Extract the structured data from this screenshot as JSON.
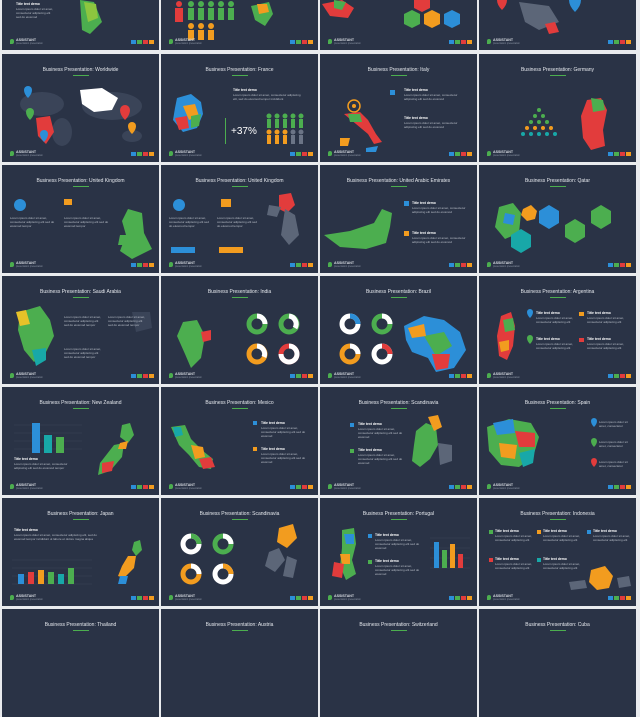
{
  "brand": {
    "name": "ASSISTANT",
    "tagline": "presentation presentation"
  },
  "text_block": {
    "heading": "Title text demo"
  },
  "colors": {
    "background": "#e9ebee",
    "slide": "#2a3346",
    "green": "#4cae4f",
    "orange": "#f29c1f",
    "red": "#e23c3c",
    "blue": "#2c8fd8",
    "teal": "#18a8a8",
    "yellow": "#e6c229"
  },
  "stat": {
    "france_percent": "+37%"
  },
  "slides": [
    {
      "id": "s0",
      "title": ""
    },
    {
      "id": "s1",
      "title": ""
    },
    {
      "id": "s2",
      "title": ""
    },
    {
      "id": "s3",
      "title": ""
    },
    {
      "id": "s4",
      "title": "Business Presentation: Worldwide"
    },
    {
      "id": "s5",
      "title": "Business Presentation: France"
    },
    {
      "id": "s6",
      "title": "Business Presentation: Italy"
    },
    {
      "id": "s7",
      "title": "Business Presentation: Germany"
    },
    {
      "id": "s8",
      "title": "Business Presentation: United Kingdom"
    },
    {
      "id": "s9",
      "title": "Business Presentation: United Kingdom"
    },
    {
      "id": "s10",
      "title": "Business Presentation: United Arabic Emirates"
    },
    {
      "id": "s11",
      "title": "Business Presentation: Qatar"
    },
    {
      "id": "s12",
      "title": "Business Presentation: Saudi Arabia"
    },
    {
      "id": "s13",
      "title": "Business Presentation: India"
    },
    {
      "id": "s14",
      "title": "Business Presentation: Brazil"
    },
    {
      "id": "s15",
      "title": "Business Presentation: Argentina"
    },
    {
      "id": "s16",
      "title": "Business Presentation: New Zealand"
    },
    {
      "id": "s17",
      "title": "Business Presentation: Mexico"
    },
    {
      "id": "s18",
      "title": "Business Presentation: Scandinavia"
    },
    {
      "id": "s19",
      "title": "Business Presentation: Spain"
    },
    {
      "id": "s20",
      "title": "Business Presentation: Japan"
    },
    {
      "id": "s21",
      "title": "Business Presentation: Scandinavia"
    },
    {
      "id": "s22",
      "title": "Business Presentation: Portugal"
    },
    {
      "id": "s23",
      "title": "Business Presentation: Indonesia"
    },
    {
      "id": "s24",
      "title": "Business Presentation: Thailand"
    },
    {
      "id": "s25",
      "title": "Business Presentation: Austria"
    },
    {
      "id": "s26",
      "title": "Business Presentation: Switzerland"
    },
    {
      "id": "s27",
      "title": "Business Presentation: Cuba"
    }
  ]
}
